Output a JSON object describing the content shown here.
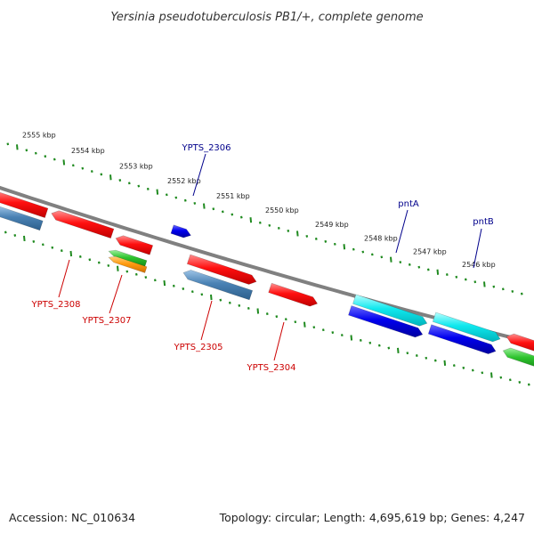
{
  "title": "Yersinia pseudotuberculosis PB1/+, complete genome",
  "footer": {
    "accession": "Accession: NC_010634",
    "summary": "Topology: circular; Length: 4,695,619 bp; Genes: 4,247"
  },
  "colors": {
    "backbone": "#808080",
    "ruler": "#1f8a1f",
    "label_forward": "#00008b",
    "label_reverse": "#cc0000"
  },
  "ticks": [
    {
      "label": "2555 kbp"
    },
    {
      "label": "2554 kbp"
    },
    {
      "label": "2553 kbp"
    },
    {
      "label": "2552 kbp"
    },
    {
      "label": "2551 kbp"
    },
    {
      "label": "2550 kbp"
    },
    {
      "label": "2549 kbp"
    },
    {
      "label": "2548 kbp"
    },
    {
      "label": "2547 kbp"
    },
    {
      "label": "2546 kbp"
    }
  ],
  "gene_labels": [
    {
      "name": "YPTS_2306",
      "strand": "forward"
    },
    {
      "name": "pntA",
      "strand": "forward"
    },
    {
      "name": "pntB",
      "strand": "forward"
    },
    {
      "name": "YPTS_2308",
      "strand": "reverse"
    },
    {
      "name": "YPTS_2307",
      "strand": "reverse"
    },
    {
      "name": "YPTS_2305",
      "strand": "reverse"
    },
    {
      "name": "YPTS_2304",
      "strand": "reverse"
    }
  ]
}
